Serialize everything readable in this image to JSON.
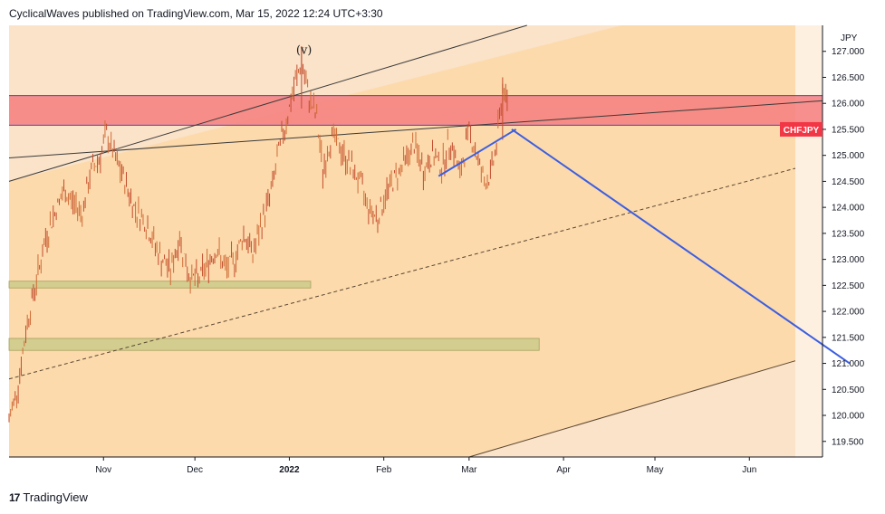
{
  "header": {
    "text": "CyclicalWaves published on TradingView.com, Mar 15, 2022 12:24 UTC+3:30"
  },
  "footer": {
    "brand": "TradingView",
    "logo": "17"
  },
  "colors": {
    "bg_light": "#fbe3c9",
    "bg_mid": "#fcd8a9",
    "resist": "#f47e7e",
    "resist_border": "#3a4bc4",
    "support": "#cfcc8e",
    "projection": "#3c5ee0",
    "candle_up": "#cf6b36",
    "candle_down": "#c24c2e",
    "symbol_badge": "#f23645"
  },
  "chart_data": {
    "type": "candlestick",
    "symbol": "CHFJPY",
    "currency_label": "JPY",
    "last_price": 125.5,
    "ylim": [
      119.2,
      127.5
    ],
    "y_ticks": [
      "127.000",
      "126.500",
      "126.000",
      "125.500",
      "125.000",
      "124.500",
      "124.000",
      "123.500",
      "123.000",
      "122.500",
      "122.000",
      "121.500",
      "121.000",
      "120.500",
      "120.000",
      "119.500"
    ],
    "x_ticks": [
      {
        "label": "Nov",
        "date": "2021-11-01"
      },
      {
        "label": "Dec",
        "date": "2021-12-01"
      },
      {
        "label": "2022",
        "date": "2022-01-01"
      },
      {
        "label": "Feb",
        "date": "2022-02-01"
      },
      {
        "label": "Mar",
        "date": "2022-03-01"
      },
      {
        "label": "Apr",
        "date": "2022-04-01"
      },
      {
        "label": "May",
        "date": "2022-05-01"
      },
      {
        "label": "Jun",
        "date": "2022-06-01"
      }
    ],
    "xlim": [
      "2021-10-01",
      "2022-06-25"
    ],
    "price_path": [
      [
        "2021-10-01",
        119.9
      ],
      [
        "2021-10-04",
        120.6
      ],
      [
        "2021-10-07",
        121.8
      ],
      [
        "2021-10-10",
        122.6
      ],
      [
        "2021-10-13",
        123.4
      ],
      [
        "2021-10-16",
        123.9
      ],
      [
        "2021-10-19",
        124.3
      ],
      [
        "2021-10-22",
        124.1
      ],
      [
        "2021-10-25",
        123.9
      ],
      [
        "2021-10-28",
        124.7
      ],
      [
        "2021-10-31",
        125.0
      ],
      [
        "2021-11-02",
        125.4
      ],
      [
        "2021-11-05",
        124.9
      ],
      [
        "2021-11-08",
        124.5
      ],
      [
        "2021-11-11",
        124.0
      ],
      [
        "2021-11-14",
        123.8
      ],
      [
        "2021-11-17",
        123.4
      ],
      [
        "2021-11-20",
        123.0
      ],
      [
        "2021-11-23",
        122.8
      ],
      [
        "2021-11-26",
        123.4
      ],
      [
        "2021-11-29",
        122.7
      ],
      [
        "2021-12-02",
        122.6
      ],
      [
        "2021-12-05",
        122.9
      ],
      [
        "2021-12-08",
        123.2
      ],
      [
        "2021-12-11",
        122.8
      ],
      [
        "2021-12-14",
        123.0
      ],
      [
        "2021-12-17",
        123.5
      ],
      [
        "2021-12-20",
        123.1
      ],
      [
        "2021-12-23",
        123.7
      ],
      [
        "2021-12-26",
        124.3
      ],
      [
        "2021-12-29",
        125.2
      ],
      [
        "2022-01-01",
        125.9
      ],
      [
        "2022-01-03",
        126.4
      ],
      [
        "2022-01-05",
        126.8
      ],
      [
        "2022-01-07",
        126.2
      ],
      [
        "2022-01-10",
        125.7
      ],
      [
        "2022-01-12",
        124.7
      ],
      [
        "2022-01-15",
        125.4
      ],
      [
        "2022-01-18",
        125.1
      ],
      [
        "2022-01-21",
        124.8
      ],
      [
        "2022-01-24",
        124.5
      ],
      [
        "2022-01-27",
        124.0
      ],
      [
        "2022-01-30",
        123.8
      ],
      [
        "2022-02-02",
        124.3
      ],
      [
        "2022-02-05",
        124.6
      ],
      [
        "2022-02-08",
        124.9
      ],
      [
        "2022-02-11",
        125.2
      ],
      [
        "2022-02-14",
        124.7
      ],
      [
        "2022-02-17",
        125.0
      ],
      [
        "2022-02-20",
        124.8
      ],
      [
        "2022-02-23",
        125.3
      ],
      [
        "2022-02-26",
        124.6
      ],
      [
        "2022-03-01",
        125.5
      ],
      [
        "2022-03-03",
        125.1
      ],
      [
        "2022-03-06",
        124.5
      ],
      [
        "2022-03-08",
        124.6
      ],
      [
        "2022-03-10",
        125.2
      ],
      [
        "2022-03-12",
        126.3
      ],
      [
        "2022-03-14",
        125.9
      ]
    ],
    "resistance_zone": {
      "from": 125.58,
      "to": 126.15
    },
    "support_zones": [
      {
        "from": 122.45,
        "to": 122.58,
        "x_end": "2022-01-08"
      },
      {
        "from": 121.25,
        "to": 121.48,
        "x_end": "2022-03-24"
      }
    ],
    "wave_label": "(v)",
    "projection": [
      [
        "2022-03-15",
        125.5
      ],
      [
        "2022-06-25",
        121.0
      ]
    ],
    "rising_wedge": [
      [
        "2022-02-19",
        124.6
      ],
      [
        "2022-03-14",
        125.5
      ]
    ]
  }
}
